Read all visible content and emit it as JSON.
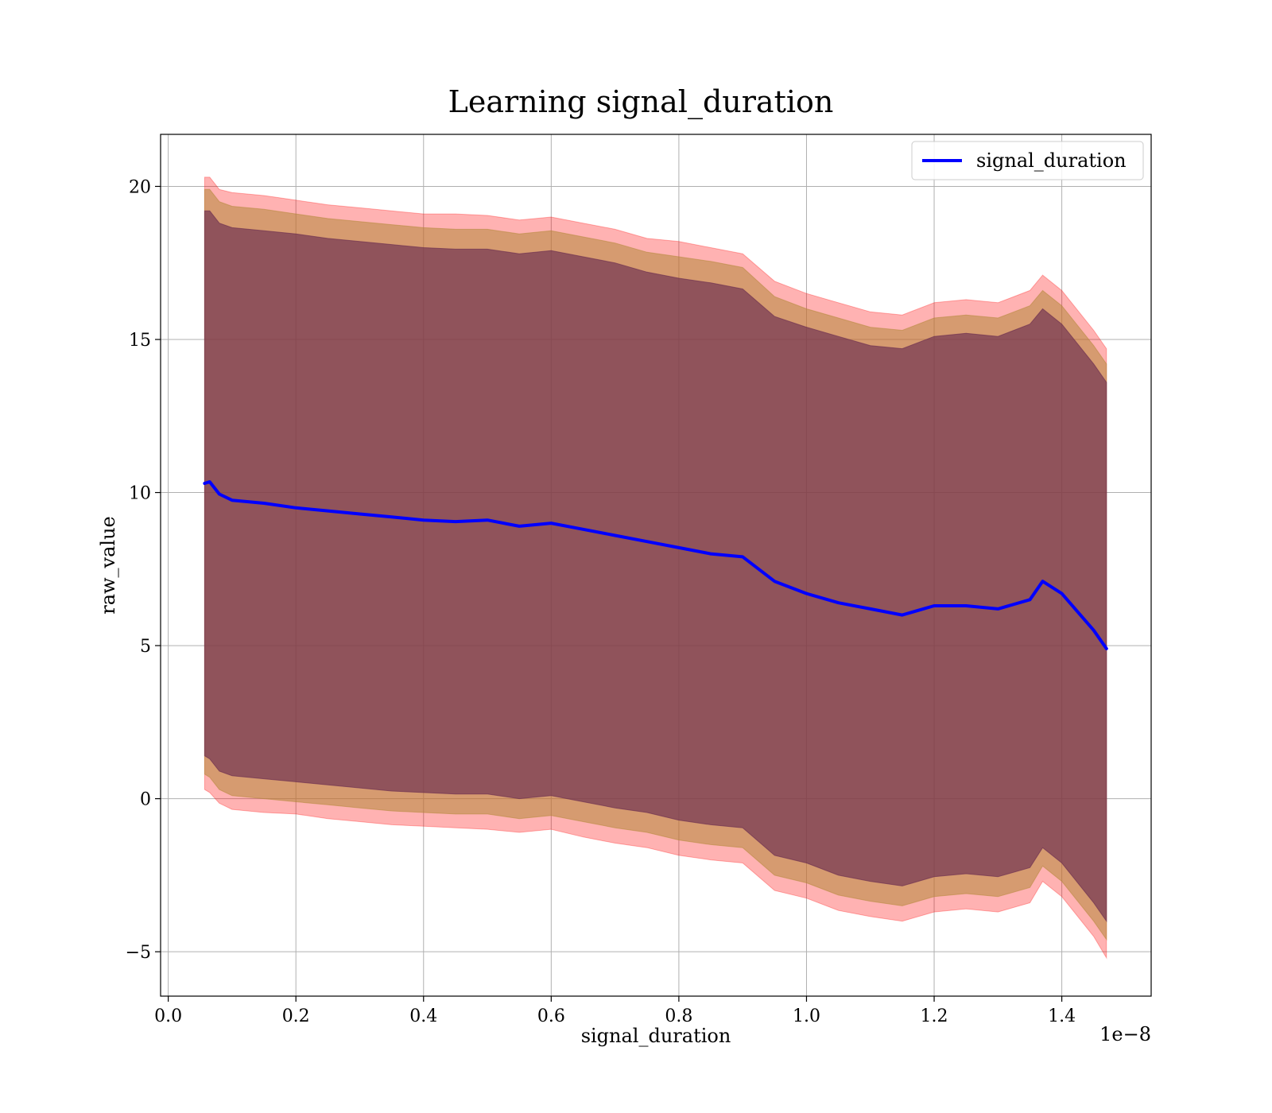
{
  "chart_data": {
    "type": "line",
    "title": "Learning signal_duration",
    "xlabel": "signal_duration",
    "ylabel": "raw_value",
    "x_offset_label": "1e−8",
    "xlim": [
      -0.012,
      1.54
    ],
    "ylim": [
      -6.45,
      21.7
    ],
    "x_ticks": [
      0.0,
      0.2,
      0.4,
      0.6,
      0.8,
      1.0,
      1.2,
      1.4
    ],
    "x_tick_labels": [
      "0.0",
      "0.2",
      "0.4",
      "0.6",
      "0.8",
      "1.0",
      "1.2",
      "1.4"
    ],
    "y_ticks": [
      -5,
      0,
      5,
      10,
      15,
      20
    ],
    "y_tick_labels": [
      "−5",
      "0",
      "5",
      "10",
      "15",
      "20"
    ],
    "grid": true,
    "legend_position": "top-right",
    "series": [
      {
        "name": "signal_duration",
        "color": "#0000ff",
        "x": [
          0.057,
          0.065,
          0.08,
          0.1,
          0.15,
          0.2,
          0.25,
          0.3,
          0.35,
          0.4,
          0.45,
          0.5,
          0.55,
          0.6,
          0.65,
          0.7,
          0.75,
          0.8,
          0.85,
          0.9,
          0.95,
          1.0,
          1.05,
          1.1,
          1.15,
          1.2,
          1.25,
          1.3,
          1.35,
          1.37,
          1.4,
          1.45,
          1.47
        ],
        "values": [
          10.3,
          10.35,
          9.95,
          9.75,
          9.65,
          9.5,
          9.4,
          9.3,
          9.2,
          9.1,
          9.05,
          9.1,
          8.9,
          9.0,
          8.8,
          8.6,
          8.4,
          8.2,
          8.0,
          7.9,
          7.1,
          6.7,
          6.4,
          6.2,
          6.0,
          6.3,
          6.3,
          6.2,
          6.5,
          7.1,
          6.7,
          5.5,
          4.9
        ]
      }
    ],
    "bands": [
      {
        "name": "outer",
        "color": "#ff0000",
        "opacity": 0.3,
        "upper": [
          20.3,
          20.3,
          19.9,
          19.8,
          19.7,
          19.55,
          19.4,
          19.3,
          19.2,
          19.1,
          19.1,
          19.05,
          18.9,
          19.0,
          18.8,
          18.6,
          18.3,
          18.2,
          18.0,
          17.8,
          16.9,
          16.5,
          16.2,
          15.9,
          15.8,
          16.2,
          16.3,
          16.2,
          16.6,
          17.1,
          16.6,
          15.3,
          14.7
        ],
        "lower": [
          0.3,
          0.2,
          -0.15,
          -0.35,
          -0.45,
          -0.5,
          -0.65,
          -0.75,
          -0.85,
          -0.9,
          -0.95,
          -1.0,
          -1.1,
          -1.0,
          -1.25,
          -1.45,
          -1.6,
          -1.85,
          -2.0,
          -2.1,
          -3.0,
          -3.25,
          -3.65,
          -3.85,
          -4.0,
          -3.7,
          -3.6,
          -3.7,
          -3.4,
          -2.7,
          -3.2,
          -4.5,
          -5.2
        ]
      },
      {
        "name": "middle",
        "color": "#b5893a",
        "opacity": 0.55,
        "upper": [
          19.9,
          19.9,
          19.5,
          19.35,
          19.25,
          19.1,
          18.95,
          18.85,
          18.75,
          18.65,
          18.6,
          18.6,
          18.45,
          18.55,
          18.35,
          18.15,
          17.85,
          17.7,
          17.55,
          17.35,
          16.4,
          16.0,
          15.7,
          15.4,
          15.3,
          15.7,
          15.8,
          15.7,
          16.1,
          16.6,
          16.1,
          14.8,
          14.2
        ],
        "lower": [
          0.8,
          0.7,
          0.3,
          0.1,
          0.0,
          -0.1,
          -0.2,
          -0.3,
          -0.4,
          -0.45,
          -0.5,
          -0.5,
          -0.65,
          -0.55,
          -0.75,
          -0.95,
          -1.1,
          -1.35,
          -1.5,
          -1.6,
          -2.5,
          -2.75,
          -3.15,
          -3.35,
          -3.5,
          -3.2,
          -3.1,
          -3.2,
          -2.9,
          -2.2,
          -2.7,
          -4.0,
          -4.6
        ]
      },
      {
        "name": "inner",
        "color": "#6a2c50",
        "opacity": 0.65,
        "upper": [
          19.2,
          19.2,
          18.8,
          18.65,
          18.55,
          18.45,
          18.3,
          18.2,
          18.1,
          18.0,
          17.95,
          17.95,
          17.8,
          17.9,
          17.7,
          17.5,
          17.2,
          17.0,
          16.85,
          16.65,
          15.75,
          15.4,
          15.1,
          14.8,
          14.7,
          15.1,
          15.2,
          15.1,
          15.5,
          16.0,
          15.5,
          14.2,
          13.6
        ],
        "lower": [
          1.4,
          1.3,
          0.9,
          0.75,
          0.65,
          0.55,
          0.45,
          0.35,
          0.25,
          0.2,
          0.15,
          0.15,
          0.0,
          0.1,
          -0.1,
          -0.3,
          -0.45,
          -0.7,
          -0.85,
          -0.95,
          -1.85,
          -2.1,
          -2.5,
          -2.7,
          -2.85,
          -2.55,
          -2.45,
          -2.55,
          -2.25,
          -1.6,
          -2.1,
          -3.4,
          -4.0
        ]
      }
    ]
  }
}
